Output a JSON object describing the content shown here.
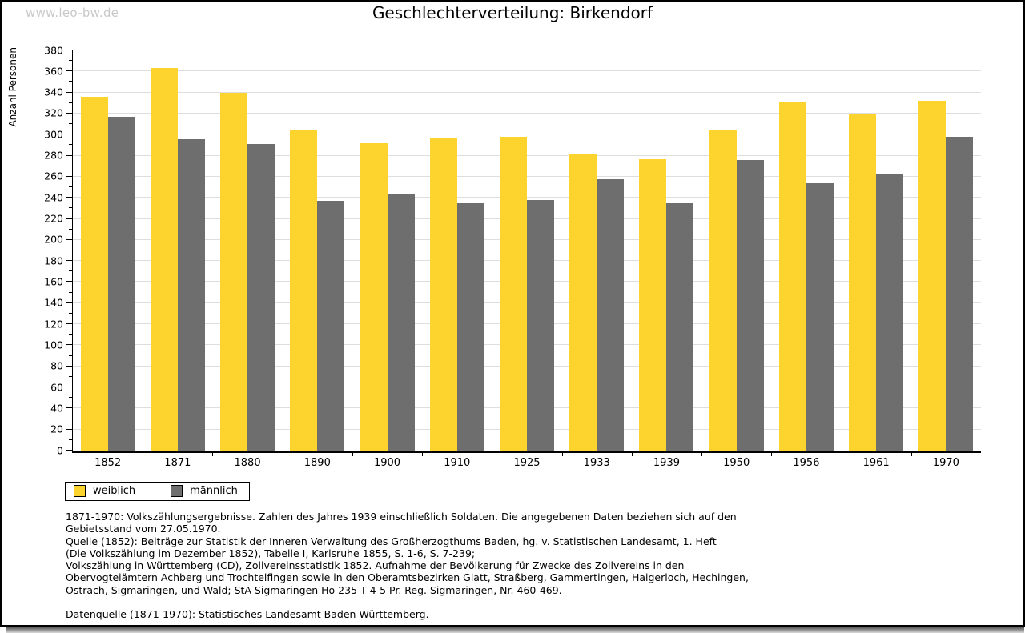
{
  "watermark": "www.leo-bw.de",
  "chart_data": {
    "type": "bar",
    "title": "Geschlechterverteilung: Birkendorf",
    "xlabel": "",
    "ylabel": "Anzahl Personen",
    "ylim": [
      0,
      380
    ],
    "ytick_step": 20,
    "grid": true,
    "legend_position": "bottom-left",
    "categories": [
      "1852",
      "1871",
      "1880",
      "1890",
      "1900",
      "1910",
      "1925",
      "1933",
      "1939",
      "1950",
      "1956",
      "1961",
      "1970"
    ],
    "series": [
      {
        "name": "weiblich",
        "color": "#FDD32E",
        "values": [
          336,
          363,
          340,
          305,
          292,
          297,
          298,
          282,
          277,
          304,
          331,
          319,
          332
        ]
      },
      {
        "name": "männlich",
        "color": "#6E6E6E",
        "values": [
          317,
          296,
          291,
          237,
          243,
          235,
          238,
          258,
          235,
          276,
          254,
          263,
          298
        ]
      }
    ]
  },
  "colors": {
    "female_bar": "#FDD32E",
    "male_bar": "#6E6E6E",
    "gridline": "#DEDEDE",
    "watermark": "#C9C9C9",
    "axis": "#000000"
  },
  "footnotes": {
    "lines": [
      "1871-1970: Volkszählungsergebnisse. Zahlen des Jahres 1939 einschließlich Soldaten. Die angegebenen Daten beziehen sich auf den",
      "Gebietsstand vom 27.05.1970.",
      "Quelle (1852): Beiträge zur Statistik der Inneren Verwaltung des Großherzogthums Baden, hg. v. Statistischen Landesamt, 1. Heft",
      "(Die Volkszählung im Dezember 1852), Tabelle I, Karlsruhe 1855, S. 1-6, S. 7-239;",
      "Volkszählung in Württemberg (CD), Zollvereinsstatistik 1852. Aufnahme der Bevölkerung für Zwecke des Zollvereins in den",
      "Obervogteiämtern Achberg und Trochtelfingen sowie in den Oberamtsbezirken Glatt, Straßberg, Gammertingen, Haigerloch, Hechingen,",
      "Ostrach, Sigmaringen, und Wald; StA Sigmaringen Ho 235 T 4-5 Pr. Reg. Sigmaringen, Nr. 460-469.",
      "",
      "Datenquelle (1871-1970): Statistisches Landesamt Baden-Württemberg."
    ]
  }
}
